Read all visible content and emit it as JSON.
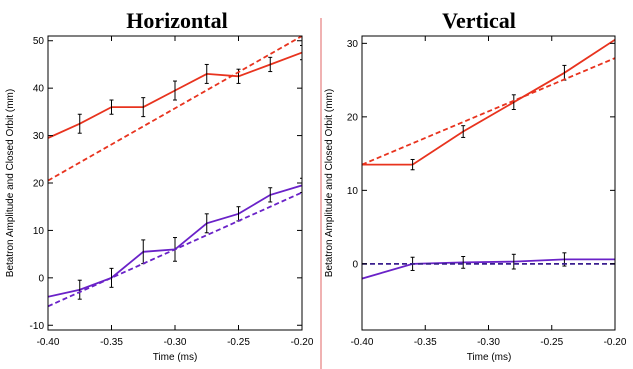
{
  "chart_data": [
    {
      "type": "line",
      "title": "Horizontal",
      "xlabel": "Time (ms)",
      "ylabel": "Betatron Amplitude and Closed Orbit (mm)",
      "xlim": [
        -0.4,
        -0.2
      ],
      "ylim": [
        -11,
        51
      ],
      "xticks": [
        -0.4,
        -0.35,
        -0.3,
        -0.25,
        -0.2
      ],
      "xtick_labels": [
        "-0.40",
        "-0.35",
        "-0.30",
        "-0.25",
        "-0.20"
      ],
      "yticks": [
        -10,
        0,
        10,
        20,
        30,
        40,
        50
      ],
      "ytick_labels": [
        "-10",
        "0",
        "10",
        "20",
        "30",
        "40",
        "50"
      ],
      "grid": false,
      "series": [
        {
          "color": "#e8331e",
          "dash": false,
          "errorbars": true,
          "x": [
            -0.4,
            -0.375,
            -0.35,
            -0.325,
            -0.3,
            -0.275,
            -0.25,
            -0.225,
            -0.2
          ],
          "y": [
            29.5,
            32.5,
            36,
            36,
            39.5,
            43,
            42.5,
            45,
            47.5
          ],
          "err": [
            2,
            2,
            1.5,
            2,
            2,
            2,
            1.5,
            1.5,
            1.5
          ],
          "err_mask": [
            false,
            true,
            true,
            true,
            true,
            true,
            true,
            true,
            true
          ]
        },
        {
          "color": "#e8331e",
          "dash": true,
          "errorbars": false,
          "x": [
            -0.4,
            -0.2
          ],
          "y": [
            20.5,
            51
          ]
        },
        {
          "color": "#6a22c8",
          "dash": false,
          "errorbars": true,
          "x": [
            -0.4,
            -0.375,
            -0.35,
            -0.325,
            -0.3,
            -0.275,
            -0.25,
            -0.225,
            -0.2
          ],
          "y": [
            -4,
            -2.5,
            0,
            5.5,
            6,
            11.5,
            13.5,
            17.5,
            19.5
          ],
          "err": [
            2,
            2,
            2,
            2.5,
            2.5,
            2,
            1.5,
            1.5,
            1.5
          ],
          "err_mask": [
            false,
            true,
            true,
            true,
            true,
            true,
            true,
            true,
            true
          ]
        },
        {
          "color": "#6a22c8",
          "dash": true,
          "errorbars": false,
          "x": [
            -0.4,
            -0.2
          ],
          "y": [
            -6,
            18
          ]
        }
      ]
    },
    {
      "type": "line",
      "title": "Vertical",
      "xlabel": "Time (ms)",
      "ylabel": "Betatron Amplitude and Closed Orbit (mm)",
      "xlim": [
        -0.4,
        -0.2
      ],
      "ylim": [
        -9,
        31
      ],
      "xticks": [
        -0.4,
        -0.35,
        -0.3,
        -0.25,
        -0.2
      ],
      "xtick_labels": [
        "-0.40",
        "-0.35",
        "-0.30",
        "-0.25",
        "-0.20"
      ],
      "yticks": [
        0,
        10,
        20,
        30
      ],
      "ytick_labels": [
        "0",
        "10",
        "20",
        "30"
      ],
      "grid": false,
      "series": [
        {
          "color": "#e8331e",
          "dash": false,
          "errorbars": true,
          "x": [
            -0.4,
            -0.36,
            -0.32,
            -0.28,
            -0.24,
            -0.2
          ],
          "y": [
            13.5,
            13.5,
            18,
            22,
            26,
            30.5
          ],
          "err": [
            0.7,
            0.7,
            0.8,
            1,
            1,
            0
          ],
          "err_mask": [
            false,
            true,
            true,
            true,
            true,
            false
          ]
        },
        {
          "color": "#e8331e",
          "dash": true,
          "errorbars": false,
          "x": [
            -0.4,
            -0.2
          ],
          "y": [
            13.5,
            28
          ]
        },
        {
          "color": "#6a22c8",
          "dash": false,
          "errorbars": true,
          "x": [
            -0.4,
            -0.36,
            -0.32,
            -0.28,
            -0.24,
            -0.2
          ],
          "y": [
            -2,
            0,
            0.2,
            0.3,
            0.6,
            0.6
          ],
          "err": [
            0,
            0.9,
            0.8,
            1,
            0.9,
            0
          ],
          "err_mask": [
            false,
            true,
            true,
            true,
            true,
            false
          ]
        },
        {
          "color": "#3a1f8f",
          "dash": true,
          "errorbars": false,
          "x": [
            -0.4,
            -0.2
          ],
          "y": [
            0,
            0
          ]
        }
      ]
    }
  ]
}
